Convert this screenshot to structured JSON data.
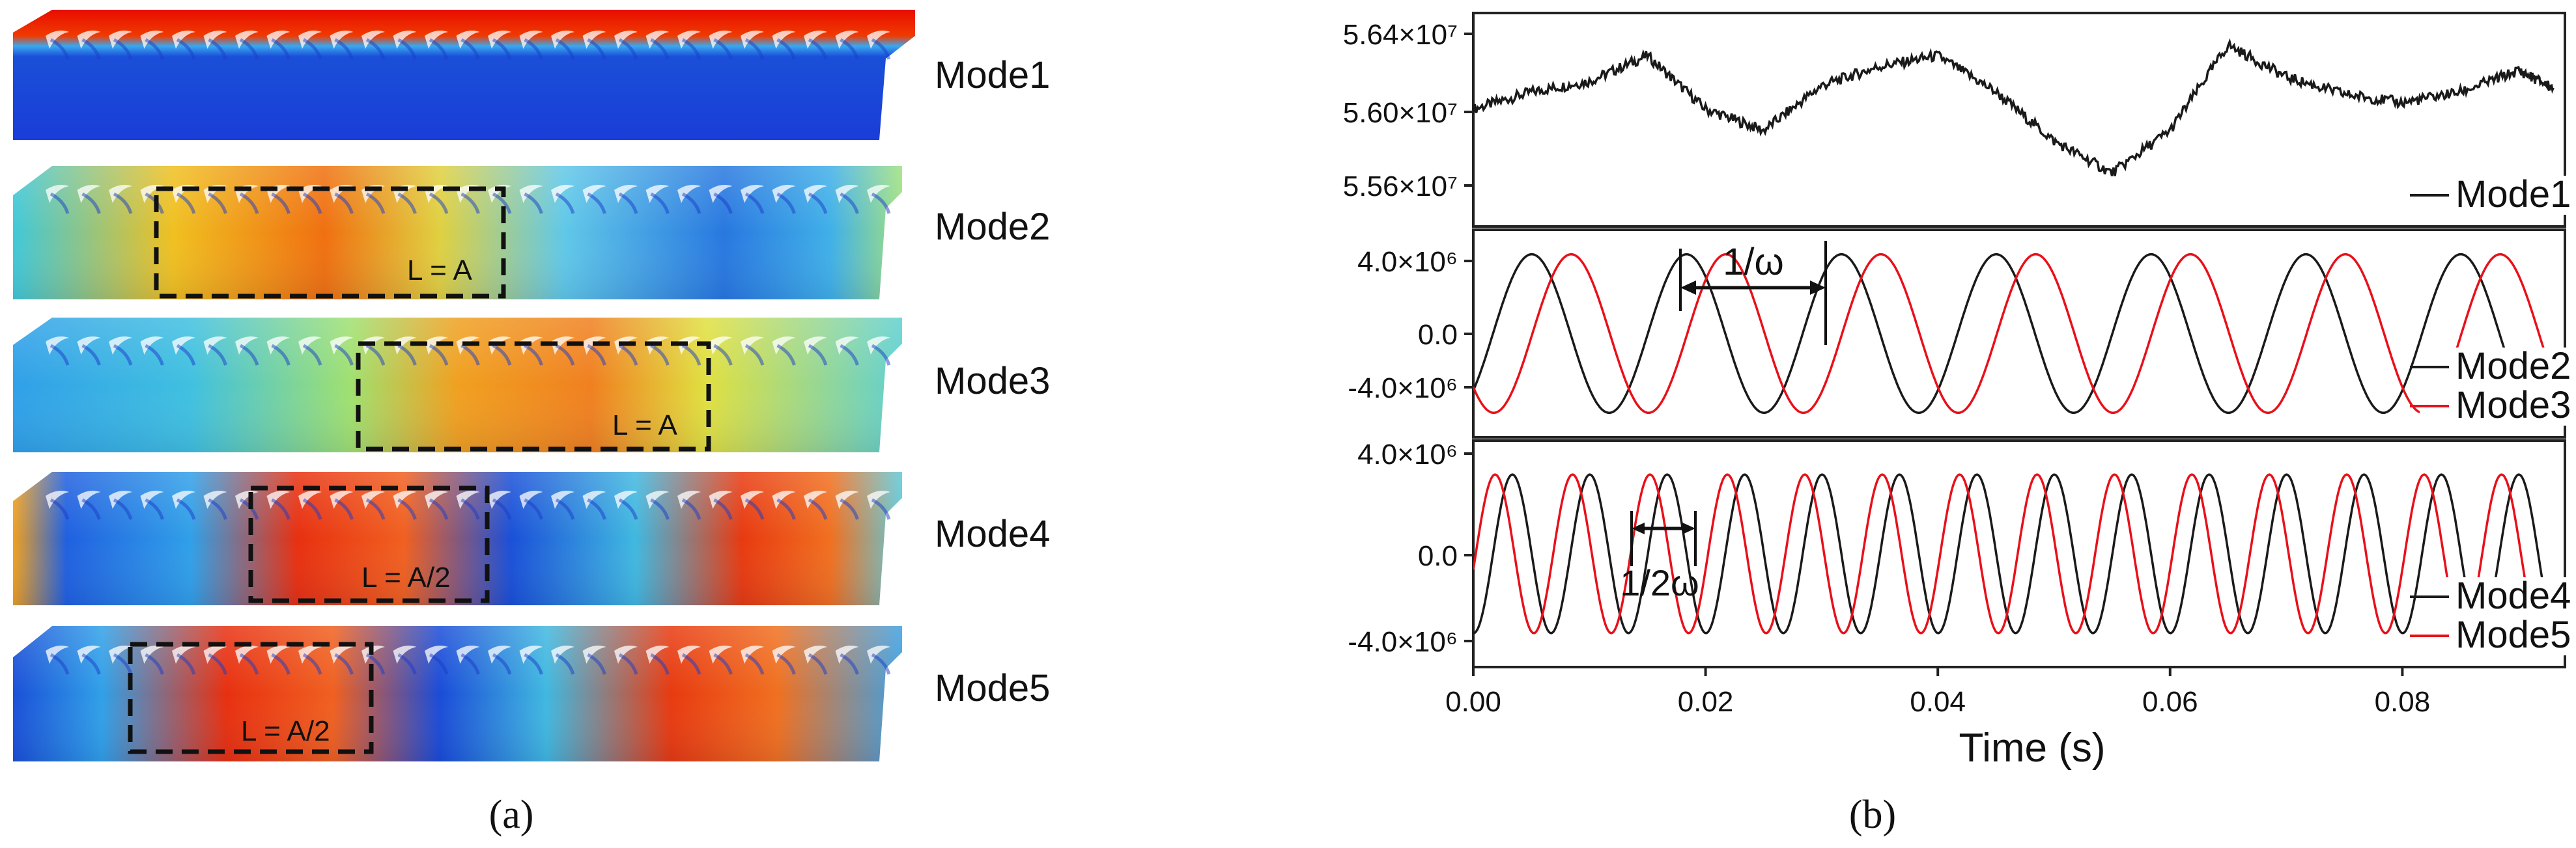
{
  "panel_a": {
    "caption": "(a)",
    "modes": [
      {
        "label": "Mode1",
        "box_label": ""
      },
      {
        "label": "Mode2",
        "box_label": "L = A"
      },
      {
        "label": "Mode3",
        "box_label": "L = A"
      },
      {
        "label": "Mode4",
        "box_label": "L = A/2"
      },
      {
        "label": "Mode5",
        "box_label": "L = A/2"
      }
    ]
  },
  "panel_b": {
    "caption": "(b)",
    "annotations": {
      "period_1": "1/ω",
      "period_2": "1/2ω"
    }
  },
  "colors": {
    "mode_black": "#1a1a1a",
    "mode_red": "#e8101a"
  },
  "chart_data": [
    {
      "type": "line",
      "xlim": [
        0,
        0.094
      ],
      "ylim": [
        55400000,
        56400000
      ],
      "yticks": [
        "5.56×10⁷",
        "5.60×10⁷",
        "5.64×10⁷"
      ],
      "legend": [
        "Mode1"
      ],
      "legend_position": "bottom-right",
      "series": [
        {
          "name": "Mode1",
          "color": "#1a1a1a",
          "x": [
            0,
            0.005,
            0.01,
            0.015,
            0.02,
            0.025,
            0.03,
            0.035,
            0.04,
            0.045,
            0.05,
            0.055,
            0.06,
            0.065,
            0.07,
            0.075,
            0.08,
            0.085,
            0.09,
            0.093
          ],
          "y": [
            55950000,
            56030000,
            56080000,
            56200000,
            55950000,
            55850000,
            56060000,
            56150000,
            56200000,
            56030000,
            55800000,
            55650000,
            55850000,
            56250000,
            56100000,
            56020000,
            55980000,
            56030000,
            56130000,
            56050000
          ]
        }
      ]
    },
    {
      "type": "line",
      "xlim": [
        0,
        0.094
      ],
      "ylim": [
        -5500000,
        5500000
      ],
      "yticks": [
        "-4.0×10⁶",
        "0.0",
        "4.0×10⁶"
      ],
      "legend": [
        "Mode2",
        "Mode3"
      ],
      "legend_position": "bottom-right",
      "series": [
        {
          "name": "Mode2",
          "color": "#1a1a1a",
          "amplitude": 4200000,
          "frequency": 75,
          "phase": -0.8
        },
        {
          "name": "Mode3",
          "color": "#e8101a",
          "amplitude": 4200000,
          "frequency": 75,
          "phase": -2.4
        }
      ]
    },
    {
      "type": "line",
      "xlim": [
        0,
        0.094
      ],
      "ylim": [
        -4000000,
        4000000
      ],
      "yticks": [
        "-4.0×10⁶",
        "0.0",
        "4.0×10⁶"
      ],
      "xticks": [
        "0.00",
        "0.02",
        "0.04",
        "0.06",
        "0.08"
      ],
      "xlabel": "Time (s)",
      "legend": [
        "Mode4",
        "Mode5"
      ],
      "legend_position": "bottom-right",
      "series": [
        {
          "name": "Mode4",
          "color": "#1a1a1a",
          "amplitude": 2800000,
          "frequency": 150,
          "phase": -1.6
        },
        {
          "name": "Mode5",
          "color": "#e8101a",
          "amplitude": 2800000,
          "frequency": 150,
          "phase": -0.2
        }
      ]
    }
  ]
}
